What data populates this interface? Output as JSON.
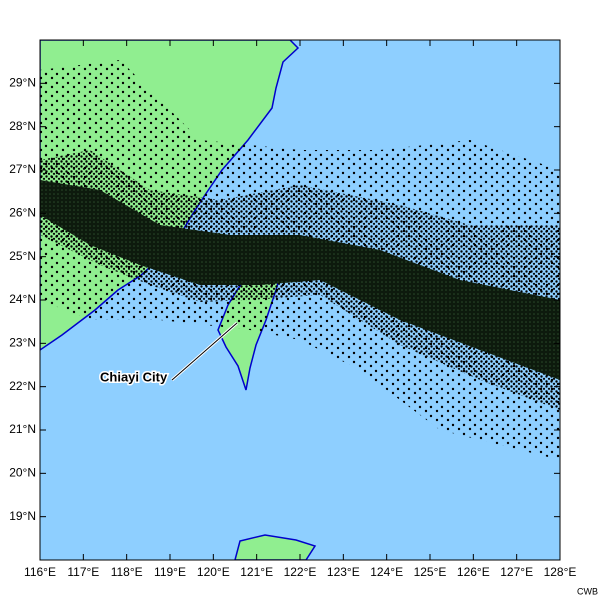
{
  "map": {
    "lon_ticks": [
      {
        "value": 116,
        "label": "116°E"
      },
      {
        "value": 117,
        "label": "117°E"
      },
      {
        "value": 118,
        "label": "118°E"
      },
      {
        "value": 119,
        "label": "119°E"
      },
      {
        "value": 120,
        "label": "120°E"
      },
      {
        "value": 121,
        "label": "121°E"
      },
      {
        "value": 122,
        "label": "122°E"
      },
      {
        "value": 123,
        "label": "123°E"
      },
      {
        "value": 124,
        "label": "124°E"
      },
      {
        "value": 125,
        "label": "125°E"
      },
      {
        "value": 126,
        "label": "126°E"
      },
      {
        "value": 127,
        "label": "127°E"
      },
      {
        "value": 128,
        "label": "128°E"
      }
    ],
    "lat_ticks": [
      {
        "value": 29,
        "label": "29°N"
      },
      {
        "value": 28,
        "label": "28°N"
      },
      {
        "value": 27,
        "label": "27°N"
      },
      {
        "value": 26,
        "label": "26°N"
      },
      {
        "value": 25,
        "label": "25°N"
      },
      {
        "value": 24,
        "label": "24°N"
      },
      {
        "value": 23,
        "label": "23°N"
      },
      {
        "value": 22,
        "label": "22°N"
      },
      {
        "value": 21,
        "label": "21°N"
      },
      {
        "value": 20,
        "label": "20°N"
      },
      {
        "value": 19,
        "label": "19°N"
      }
    ],
    "lonlim": [
      116,
      128
    ],
    "latlim": [
      18,
      30
    ],
    "annotation": "Chiayi City",
    "credit": "CWB"
  }
}
